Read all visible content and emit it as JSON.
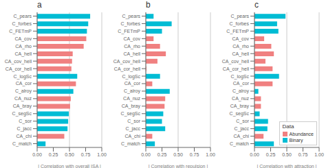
{
  "chart_data": [
    {
      "type": "bar",
      "orientation": "horizontal",
      "title": "a",
      "x_label": "| Correlation with overall ISA |",
      "categories": [
        "C_pears",
        "C_forbes",
        "C_FETmP",
        "CA_cov",
        "CA_rho",
        "CA_hell",
        "CA_cov_hell",
        "CA_cor_hell",
        "C_logSc",
        "CA_cor",
        "C_alroy",
        "CA_nuz",
        "CA_bray",
        "C_segSc",
        "C_sor",
        "C_jacc",
        "CA_chi",
        "C_match"
      ],
      "series": [
        {
          "name": "Abundance",
          "color": "#F08080",
          "values": [
            null,
            null,
            null,
            0.76,
            0.72,
            0.55,
            0.54,
            0.53,
            null,
            0.6,
            null,
            0.52,
            0.51,
            null,
            null,
            null,
            0.42,
            null
          ]
        },
        {
          "name": "Binary",
          "color": "#00BCD4",
          "values": [
            0.82,
            0.79,
            0.77,
            null,
            null,
            null,
            null,
            null,
            0.62,
            null,
            0.56,
            null,
            null,
            0.49,
            0.48,
            0.47,
            null,
            0.13
          ]
        }
      ],
      "xlim": [
        0,
        1.0
      ],
      "xticks": [
        {
          "value": 0.0,
          "label": "0.00"
        },
        {
          "value": 0.25,
          "label": "0.25"
        },
        {
          "value": 0.5,
          "label": "0.50"
        },
        {
          "value": 0.75,
          "label": "0.75"
        },
        {
          "value": 1.0,
          "label": "1.00"
        }
      ],
      "grid": true
    },
    {
      "type": "bar",
      "orientation": "horizontal",
      "title": "b",
      "x_label": "| Correlation with repulsion |",
      "categories": [
        "C_pears",
        "C_forbes",
        "C_FETmP",
        "CA_cov",
        "CA_rho",
        "CA_hell",
        "CA_cov_hell",
        "CA_cor_hell",
        "C_logSc",
        "CA_cor",
        "C_alroy",
        "CA_nuz",
        "CA_bray",
        "C_segSc",
        "C_sor",
        "C_jacc",
        "CA_chi",
        "C_match"
      ],
      "series": [
        {
          "name": "Abundance",
          "color": "#F08080",
          "values": [
            null,
            null,
            null,
            0.12,
            0.22,
            0.31,
            0.18,
            0.01,
            null,
            0.1,
            null,
            0.3,
            0.29,
            null,
            null,
            null,
            0.1,
            null
          ]
        },
        {
          "name": "Binary",
          "color": "#00BCD4",
          "values": [
            0.12,
            0.4,
            0.25,
            null,
            null,
            null,
            null,
            null,
            0.22,
            null,
            0.37,
            null,
            null,
            0.27,
            0.25,
            0.3,
            null,
            0.14
          ]
        }
      ],
      "xlim": [
        0,
        1.0
      ],
      "xticks": [
        {
          "value": 0.0,
          "label": "0.00"
        },
        {
          "value": 0.25,
          "label": "0.25"
        },
        {
          "value": 0.5,
          "label": "0.50"
        },
        {
          "value": 0.75,
          "label": "0.75"
        },
        {
          "value": 1.0,
          "label": "1.00"
        }
      ],
      "grid": true
    },
    {
      "type": "bar",
      "orientation": "horizontal",
      "title": "c",
      "x_label": "| Correlation with attraction |",
      "categories": [
        "C_pears",
        "C_forbes",
        "C_FETmP",
        "CA_cov",
        "CA_rho",
        "CA_hell",
        "CA_cov_hell",
        "CA_cor_hell",
        "C_logSc",
        "CA_cor",
        "C_alroy",
        "CA_nuz",
        "CA_bray",
        "C_segSc",
        "C_sor",
        "C_jacc",
        "CA_chi",
        "C_match"
      ],
      "series": [
        {
          "name": "Abundance",
          "color": "#F08080",
          "values": [
            null,
            null,
            null,
            0.15,
            0.26,
            0.3,
            0.17,
            0.28,
            null,
            0.28,
            null,
            0.1,
            0.1,
            null,
            null,
            null,
            0.14,
            null
          ]
        },
        {
          "name": "Binary",
          "color": "#00BCD4",
          "values": [
            0.48,
            0.35,
            0.37,
            null,
            null,
            null,
            null,
            null,
            0.38,
            null,
            0.06,
            null,
            null,
            0.08,
            0.21,
            0.2,
            null,
            0.3
          ]
        }
      ],
      "xlim": [
        0,
        1.0
      ],
      "xticks": [
        {
          "value": 0.0,
          "label": "0.00"
        },
        {
          "value": 0.25,
          "label": "0.25"
        },
        {
          "value": 0.5,
          "label": "0.50"
        },
        {
          "value": 0.75,
          "label": "0.75"
        },
        {
          "value": 1.0,
          "label": "1.00"
        }
      ],
      "grid": true,
      "legend": "lower right",
      "legend_title": "Data"
    }
  ]
}
